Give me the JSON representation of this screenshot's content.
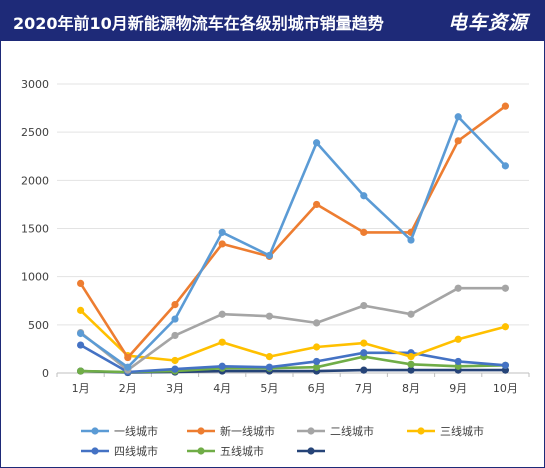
{
  "header": {
    "title": "2020年前10月新能源物流车在各级别城市销量趋势",
    "brand": "电车资源"
  },
  "chart_data": {
    "type": "line",
    "title": "2020年前10月新能源物流车在各级别城市销量趋势",
    "xlabel": "",
    "ylabel": "",
    "ylim": [
      0,
      3000
    ],
    "yticks": [
      0,
      500,
      1000,
      1500,
      2000,
      2500,
      3000
    ],
    "grid": true,
    "legend_position": "bottom",
    "categories": [
      "1月",
      "2月",
      "3月",
      "4月",
      "5月",
      "6月",
      "7月",
      "8月",
      "9月",
      "10月"
    ],
    "series": [
      {
        "name": "一线城市",
        "color": "#5b9bd5",
        "values": [
          410,
          60,
          560,
          1460,
          1220,
          2390,
          1840,
          1380,
          2660,
          2150
        ]
      },
      {
        "name": "新一线城市",
        "color": "#ed7d31",
        "values": [
          930,
          160,
          710,
          1340,
          1210,
          1750,
          1460,
          1460,
          2410,
          2770
        ]
      },
      {
        "name": "二线城市",
        "color": "#a5a5a5",
        "values": [
          420,
          30,
          390,
          610,
          590,
          520,
          700,
          610,
          880,
          880
        ]
      },
      {
        "name": "三线城市",
        "color": "#ffc000",
        "values": [
          650,
          180,
          130,
          320,
          170,
          270,
          310,
          170,
          350,
          480
        ]
      },
      {
        "name": "四线城市",
        "color": "#4472c4",
        "values": [
          290,
          10,
          40,
          70,
          60,
          120,
          210,
          210,
          120,
          80
        ]
      },
      {
        "name": "五线城市",
        "color": "#70ad47",
        "values": [
          20,
          10,
          20,
          50,
          50,
          60,
          170,
          90,
          70,
          80
        ]
      },
      {
        "name": "",
        "color": "#264478",
        "values": [
          20,
          5,
          10,
          20,
          20,
          20,
          30,
          30,
          30,
          30
        ]
      }
    ]
  }
}
